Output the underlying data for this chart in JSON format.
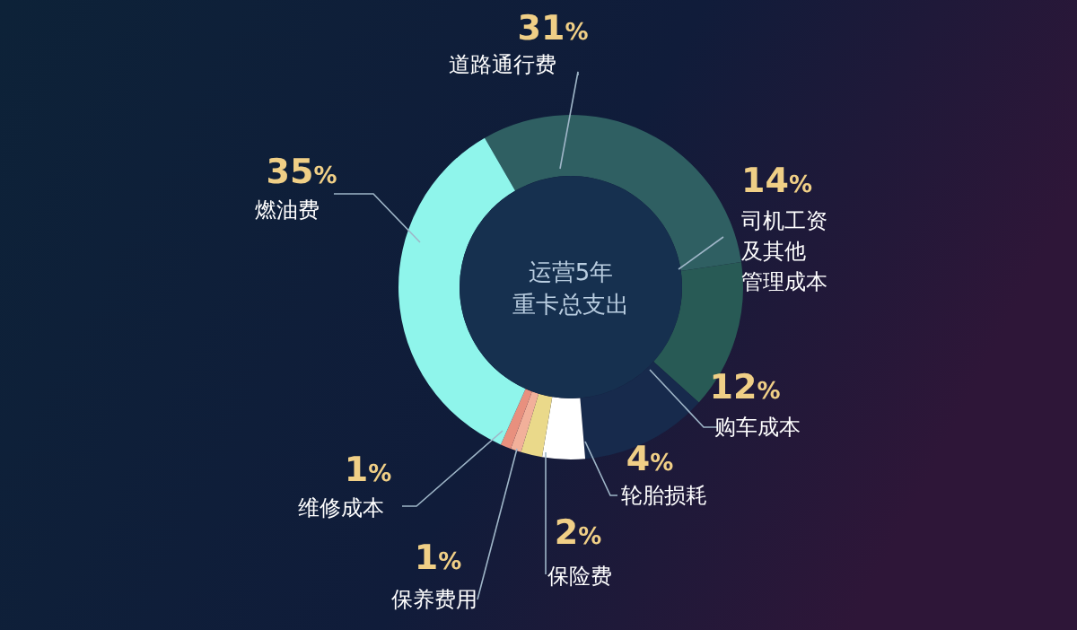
{
  "chart_data": {
    "type": "donut",
    "title": "运营5年重卡总支出",
    "categories": [
      "道路通行费",
      "司机工资及其他管理成本",
      "购车成本",
      "轮胎损耗",
      "保险费",
      "保养费用",
      "维修成本",
      "燃油费"
    ],
    "values": [
      31,
      14,
      12,
      4,
      2,
      1,
      1,
      35
    ],
    "colors": [
      "#2f5f62",
      "#285a55",
      "#172a4c",
      "#ffffff",
      "#ead98a",
      "#f2b09a",
      "#e8907e",
      "#8ff5eb"
    ],
    "value_labels": [
      "31%",
      "14%",
      "12%",
      "4%",
      "2%",
      "1%",
      "1%",
      "35%"
    ]
  }
}
